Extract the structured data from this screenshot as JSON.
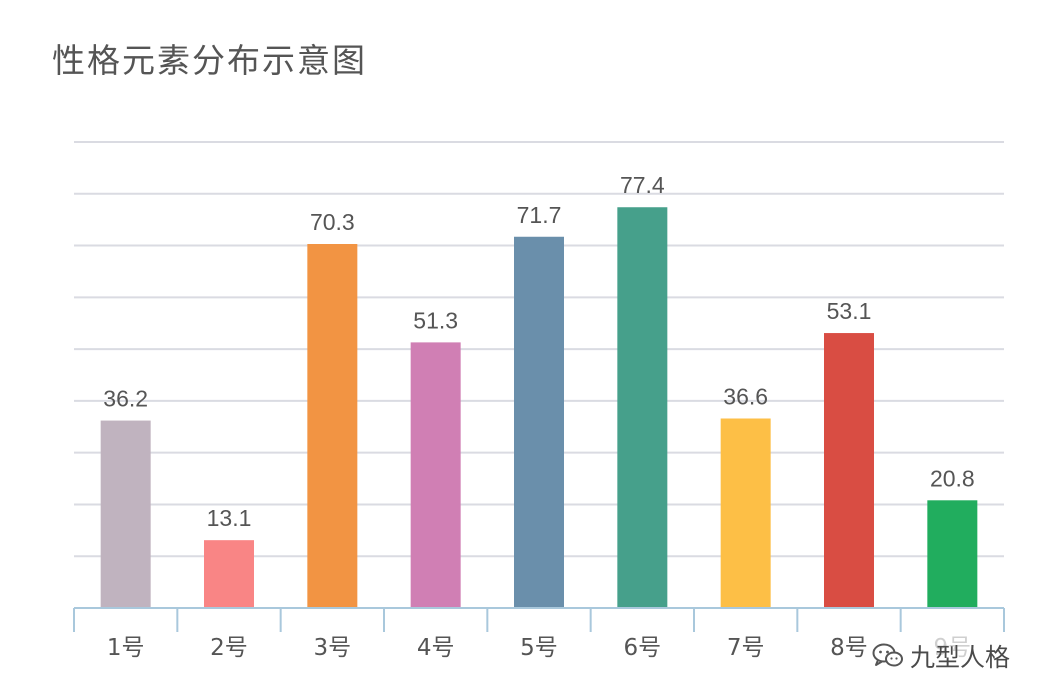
{
  "title": "性格元素分布示意图",
  "watermark": {
    "text": "九型人格",
    "icon": "wechat-icon"
  },
  "chart_data": {
    "type": "bar",
    "title": "性格元素分布示意图",
    "categories": [
      "1号",
      "2号",
      "3号",
      "4号",
      "5号",
      "6号",
      "7号",
      "8号",
      "9号"
    ],
    "values": [
      36.2,
      13.1,
      70.3,
      51.3,
      71.7,
      77.4,
      36.6,
      53.1,
      20.8
    ],
    "value_labels": [
      "36.2",
      "13.1",
      "70.3",
      "51.3",
      "71.7",
      "77.4",
      "36.6",
      "53.1",
      "20.8"
    ],
    "colors": [
      "#c0b3bf",
      "#f98585",
      "#f29443",
      "#d07fb4",
      "#6a8fab",
      "#46a08b",
      "#fdbf46",
      "#d94d43",
      "#21ad5e"
    ],
    "ylim": [
      0,
      90
    ],
    "grid": true,
    "legend": false,
    "axis_color": "#a9c8dc",
    "grid_color": "#dadbe2"
  }
}
